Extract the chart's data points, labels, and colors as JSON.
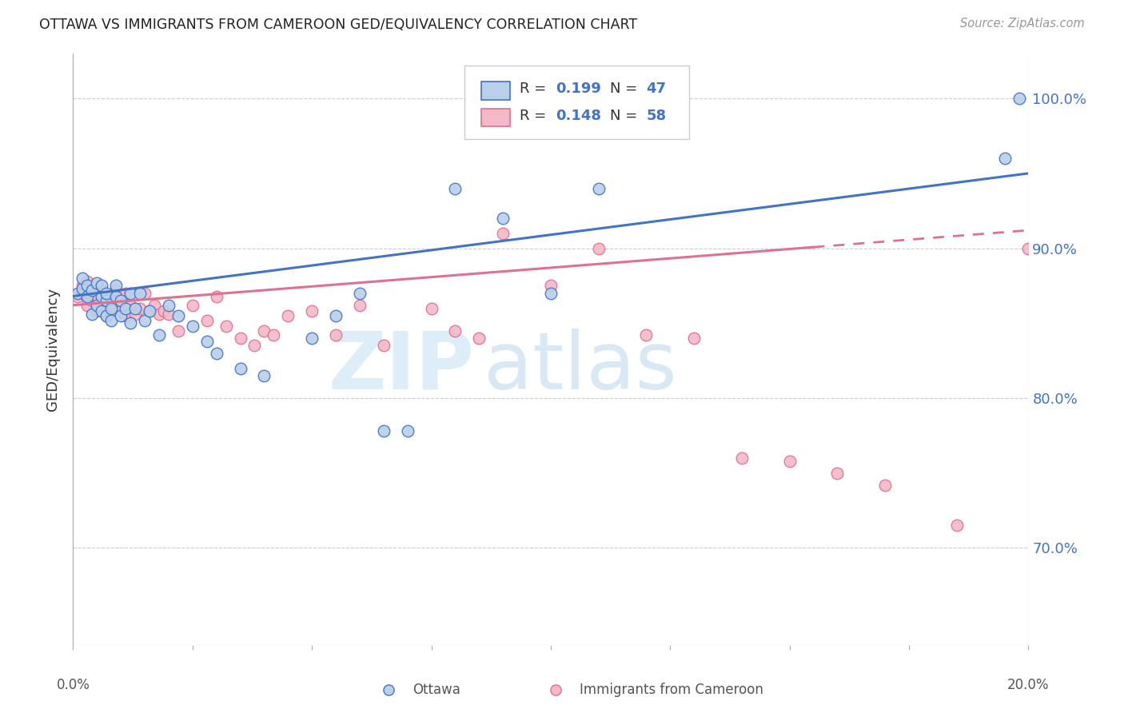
{
  "title": "OTTAWA VS IMMIGRANTS FROM CAMEROON GED/EQUIVALENCY CORRELATION CHART",
  "source": "Source: ZipAtlas.com",
  "ylabel": "GED/Equivalency",
  "ytick_labels": [
    "70.0%",
    "80.0%",
    "90.0%",
    "100.0%"
  ],
  "ytick_values": [
    0.7,
    0.8,
    0.9,
    1.0
  ],
  "xlim": [
    0.0,
    0.2
  ],
  "ylim": [
    0.635,
    1.03
  ],
  "legend_R1": "0.199",
  "legend_N1": "47",
  "legend_R2": "0.148",
  "legend_N2": "58",
  "ottawa_color": "#b8d0ea",
  "cameroon_color": "#f4b8c8",
  "line_blue": "#4472c4",
  "line_pink": "#e07090",
  "title_color": "#222222",
  "source_color": "#999999",
  "axis_label_color": "#333333",
  "tick_color_right": "#4472c4",
  "watermark_color": "#ddeef8",
  "ottawa_x": [
    0.001,
    0.002,
    0.002,
    0.003,
    0.003,
    0.004,
    0.004,
    0.005,
    0.005,
    0.006,
    0.006,
    0.006,
    0.007,
    0.007,
    0.007,
    0.008,
    0.008,
    0.009,
    0.009,
    0.01,
    0.01,
    0.011,
    0.012,
    0.012,
    0.013,
    0.014,
    0.015,
    0.016,
    0.018,
    0.02,
    0.022,
    0.025,
    0.028,
    0.03,
    0.035,
    0.04,
    0.05,
    0.055,
    0.06,
    0.065,
    0.07,
    0.08,
    0.09,
    0.1,
    0.11,
    0.195,
    0.198
  ],
  "ottawa_y": [
    0.87,
    0.873,
    0.88,
    0.868,
    0.875,
    0.856,
    0.872,
    0.877,
    0.862,
    0.868,
    0.875,
    0.858,
    0.855,
    0.865,
    0.87,
    0.86,
    0.852,
    0.868,
    0.875,
    0.855,
    0.865,
    0.86,
    0.87,
    0.85,
    0.86,
    0.87,
    0.852,
    0.858,
    0.842,
    0.862,
    0.855,
    0.848,
    0.838,
    0.83,
    0.82,
    0.815,
    0.84,
    0.855,
    0.87,
    0.778,
    0.778,
    0.94,
    0.92,
    0.87,
    0.94,
    0.96,
    1.0
  ],
  "cameroon_x": [
    0.001,
    0.002,
    0.002,
    0.003,
    0.003,
    0.004,
    0.004,
    0.005,
    0.005,
    0.006,
    0.006,
    0.007,
    0.007,
    0.008,
    0.008,
    0.009,
    0.009,
    0.01,
    0.01,
    0.011,
    0.011,
    0.012,
    0.013,
    0.014,
    0.015,
    0.016,
    0.017,
    0.018,
    0.019,
    0.02,
    0.022,
    0.025,
    0.028,
    0.03,
    0.032,
    0.035,
    0.038,
    0.04,
    0.042,
    0.045,
    0.05,
    0.055,
    0.06,
    0.065,
    0.075,
    0.08,
    0.085,
    0.09,
    0.1,
    0.11,
    0.12,
    0.13,
    0.14,
    0.15,
    0.16,
    0.17,
    0.185,
    0.2
  ],
  "cameroon_y": [
    0.868,
    0.875,
    0.87,
    0.862,
    0.878,
    0.865,
    0.87,
    0.858,
    0.868,
    0.86,
    0.872,
    0.855,
    0.868,
    0.862,
    0.858,
    0.872,
    0.865,
    0.858,
    0.868,
    0.87,
    0.855,
    0.862,
    0.856,
    0.86,
    0.87,
    0.858,
    0.862,
    0.856,
    0.858,
    0.856,
    0.845,
    0.862,
    0.852,
    0.868,
    0.848,
    0.84,
    0.835,
    0.845,
    0.842,
    0.855,
    0.858,
    0.842,
    0.862,
    0.835,
    0.86,
    0.845,
    0.84,
    0.91,
    0.875,
    0.9,
    0.842,
    0.84,
    0.76,
    0.758,
    0.75,
    0.742,
    0.715,
    0.9
  ],
  "xtick_positions": [
    0.0,
    0.025,
    0.05,
    0.075,
    0.1,
    0.125,
    0.15,
    0.175,
    0.2
  ],
  "grid_color": "#cccccc"
}
